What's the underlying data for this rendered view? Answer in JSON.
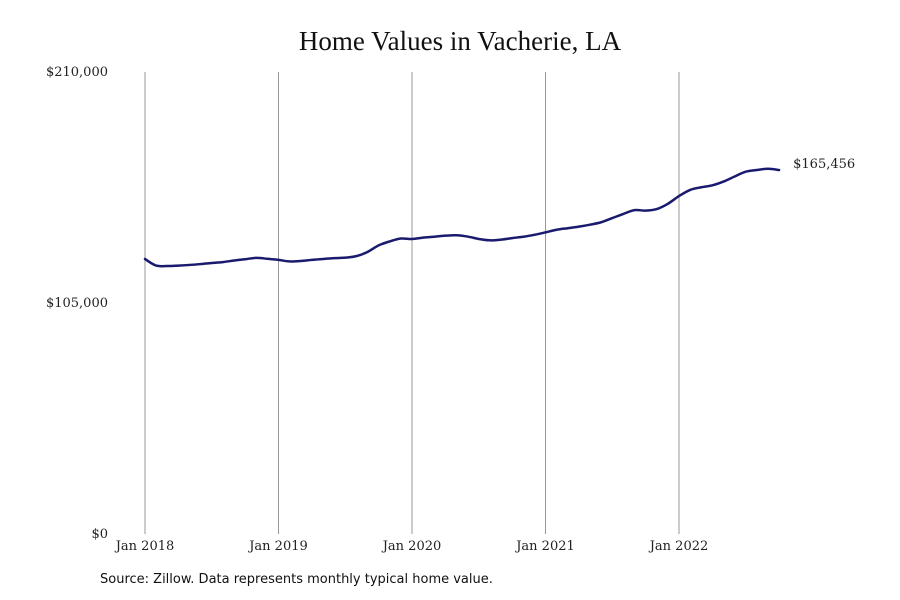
{
  "chart_data": {
    "type": "line",
    "title": "Home Values in Vacherie, LA",
    "xlabel": "",
    "ylabel": "",
    "ylim": [
      0,
      210000
    ],
    "y_tick_labels": [
      "$210,000",
      "$105,000",
      "$0"
    ],
    "y_tick_values": [
      210000,
      105000,
      0
    ],
    "x_tick_labels": [
      "Jan 2018",
      "Jan 2019",
      "Jan 2020",
      "Jan 2021",
      "Jan 2022"
    ],
    "x_tick_dates": [
      "2018-01",
      "2019-01",
      "2020-01",
      "2021-01",
      "2022-01"
    ],
    "x_range": [
      "2018-01",
      "2022-10"
    ],
    "grid": "vertical",
    "line_color": "#1a1a6e",
    "gridline_color": "#999999",
    "series": [
      {
        "x": [
          "2018-01",
          "2018-02",
          "2018-03",
          "2018-04",
          "2018-05",
          "2018-06",
          "2018-07",
          "2018-08",
          "2018-09",
          "2018-10",
          "2018-11",
          "2018-12",
          "2019-01",
          "2019-02",
          "2019-03",
          "2019-04",
          "2019-05",
          "2019-06",
          "2019-07",
          "2019-08",
          "2019-09",
          "2019-10",
          "2019-11",
          "2019-12",
          "2020-01",
          "2020-02",
          "2020-03",
          "2020-04",
          "2020-05",
          "2020-06",
          "2020-07",
          "2020-08",
          "2020-09",
          "2020-10",
          "2020-11",
          "2020-12",
          "2021-01",
          "2021-02",
          "2021-03",
          "2021-04",
          "2021-05",
          "2021-06",
          "2021-07",
          "2021-08",
          "2021-09",
          "2021-10",
          "2021-11",
          "2021-12",
          "2022-01",
          "2022-02",
          "2022-03",
          "2022-04",
          "2022-05",
          "2022-06",
          "2022-07",
          "2022-08",
          "2022-09",
          "2022-10"
        ],
        "values": [
          125000,
          122000,
          121800,
          122000,
          122300,
          122700,
          123200,
          123600,
          124300,
          124900,
          125500,
          125100,
          124600,
          123900,
          124100,
          124600,
          125000,
          125400,
          125600,
          126300,
          128200,
          131200,
          133000,
          134300,
          134100,
          134700,
          135100,
          135600,
          135800,
          135200,
          134100,
          133500,
          133800,
          134500,
          135100,
          136000,
          137100,
          138300,
          139000,
          139700,
          140600,
          141700,
          143600,
          145500,
          147200,
          147000,
          147700,
          150100,
          153600,
          156400,
          157600,
          158500,
          160200,
          162500,
          164700,
          165456,
          166000,
          165456
        ],
        "end_label": "$165,456"
      }
    ]
  },
  "source_note": "Source: Zillow. Data represents monthly typical home value."
}
